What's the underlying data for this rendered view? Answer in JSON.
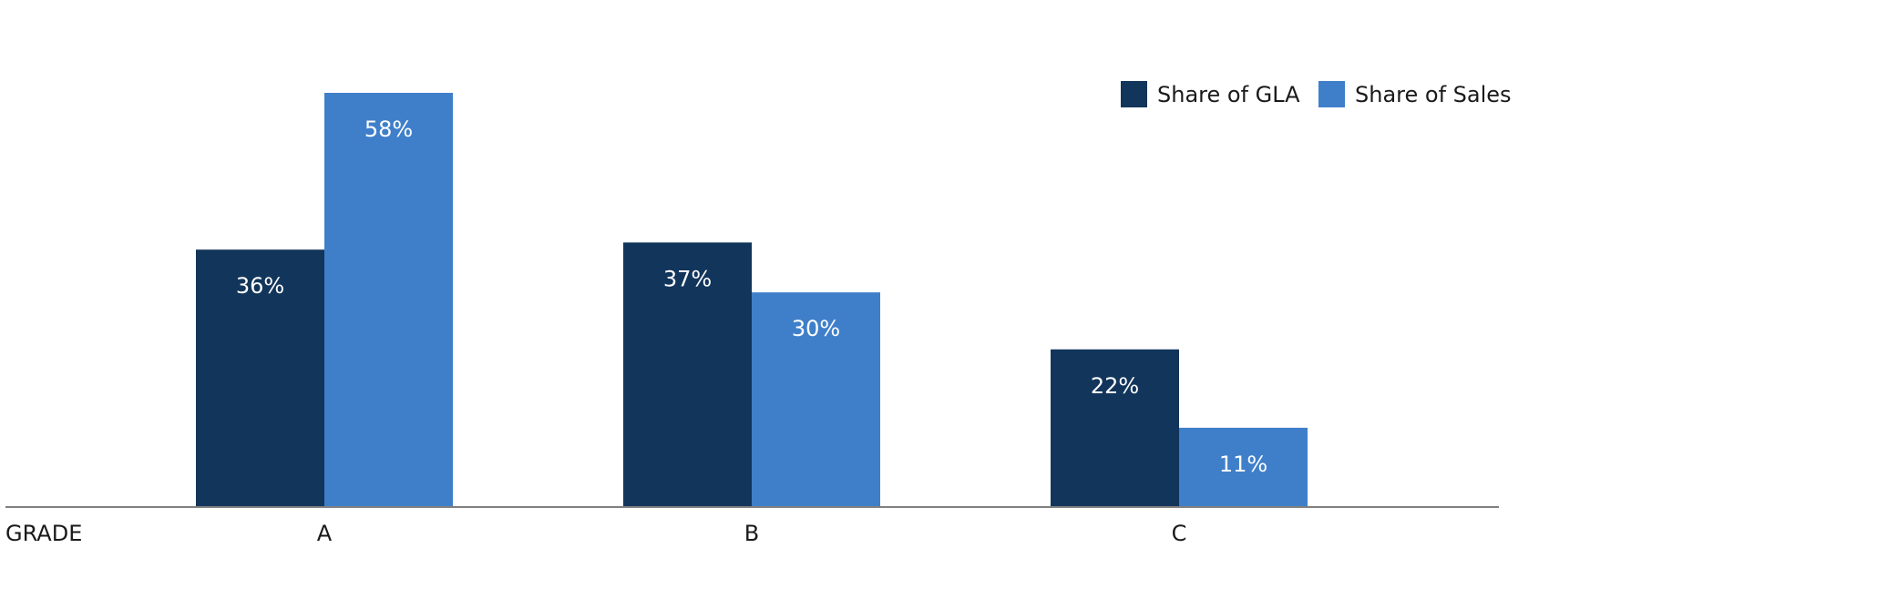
{
  "chart_data": {
    "type": "bar",
    "title": "",
    "xlabel": "GRADE",
    "ylabel": "",
    "categories": [
      "A",
      "B",
      "C"
    ],
    "series": [
      {
        "name": "Share of GLA",
        "values": [
          36,
          37,
          22
        ],
        "labels": [
          "36%",
          "37%",
          "22%"
        ],
        "color": "#12355b"
      },
      {
        "name": "Share of Sales",
        "values": [
          58,
          30,
          11
        ],
        "labels": [
          "58%",
          "30%",
          "11%"
        ],
        "color": "#3f7fca"
      }
    ],
    "ylim": [
      0,
      58
    ],
    "grid": false,
    "legend_position": "top-right",
    "axis_color": "#808080"
  }
}
